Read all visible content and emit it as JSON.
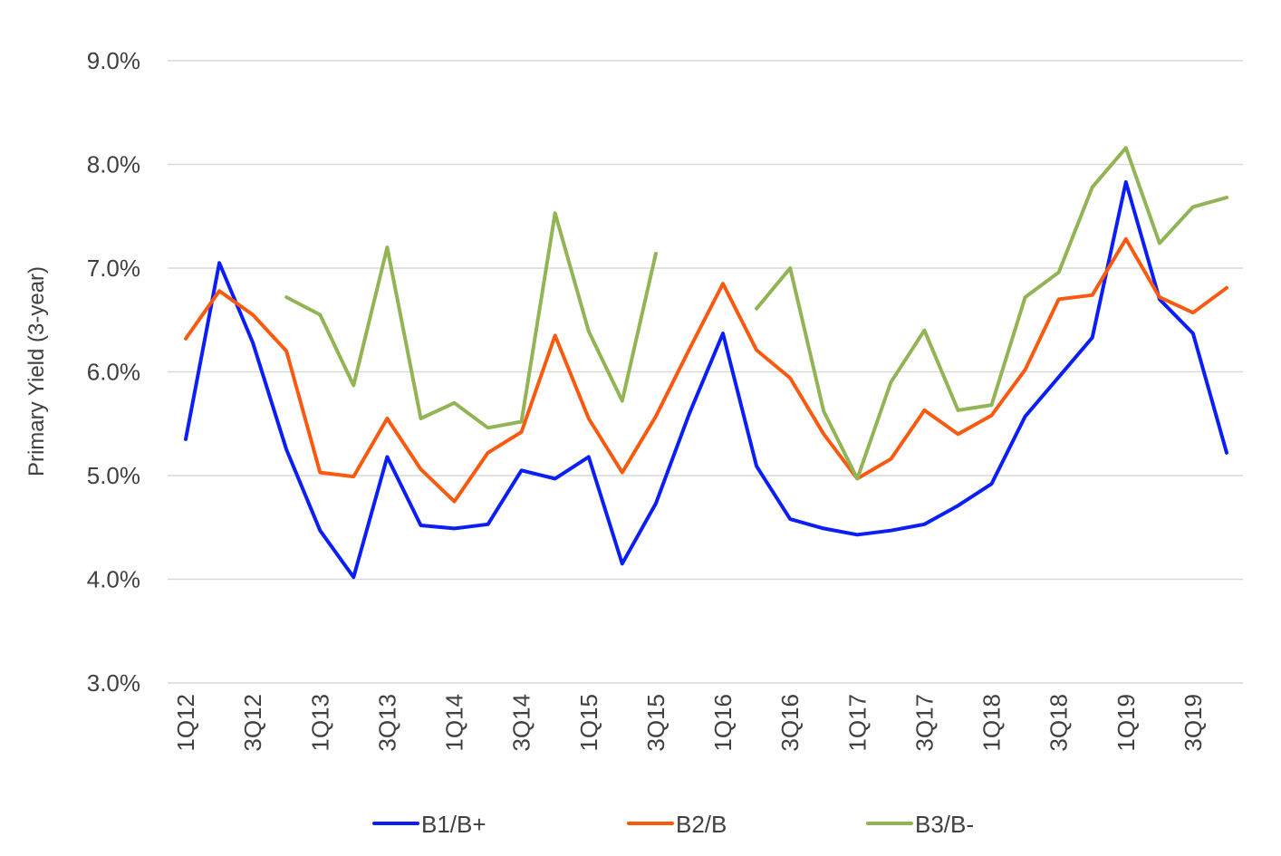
{
  "chart_data": {
    "type": "line",
    "title": "",
    "xlabel": "",
    "ylabel": "Primary Yield (3-year)",
    "ylim": [
      3.0,
      9.0
    ],
    "yticks": [
      "3.0%",
      "4.0%",
      "5.0%",
      "6.0%",
      "7.0%",
      "8.0%",
      "9.0%"
    ],
    "grid": true,
    "legend": "bottom",
    "categories": [
      "1Q12",
      "2Q12",
      "3Q12",
      "4Q12",
      "1Q13",
      "2Q13",
      "3Q13",
      "4Q13",
      "1Q14",
      "2Q14",
      "3Q14",
      "4Q14",
      "1Q15",
      "2Q15",
      "3Q15",
      "4Q15",
      "1Q16",
      "2Q16",
      "3Q16",
      "4Q16",
      "1Q17",
      "2Q17",
      "3Q17",
      "4Q17",
      "1Q18",
      "2Q18",
      "3Q18",
      "4Q18",
      "1Q19",
      "2Q19",
      "3Q19",
      "4Q19"
    ],
    "xtick_labels": [
      "1Q12",
      "3Q12",
      "1Q13",
      "3Q13",
      "1Q14",
      "3Q14",
      "1Q15",
      "3Q15",
      "1Q16",
      "3Q16",
      "1Q17",
      "3Q17",
      "1Q18",
      "3Q18",
      "1Q19",
      "3Q19"
    ],
    "series": [
      {
        "name": "B1/B+",
        "color": "#0a1ef5",
        "values": [
          5.35,
          7.05,
          6.28,
          5.25,
          4.47,
          4.02,
          5.18,
          4.52,
          4.49,
          4.53,
          5.05,
          4.97,
          5.18,
          4.15,
          4.73,
          5.6,
          6.37,
          5.09,
          4.58,
          4.49,
          4.43,
          4.47,
          4.53,
          4.71,
          4.92,
          5.57,
          5.95,
          6.33,
          7.83,
          6.7,
          6.37,
          5.22
        ]
      },
      {
        "name": "B2/B",
        "color": "#fa5a0f",
        "values": [
          6.32,
          6.78,
          6.55,
          6.2,
          5.03,
          4.99,
          5.55,
          5.06,
          4.75,
          5.22,
          5.42,
          6.35,
          5.55,
          5.03,
          5.57,
          6.22,
          6.85,
          6.21,
          5.94,
          5.4,
          4.97,
          5.16,
          5.63,
          5.4,
          5.58,
          6.02,
          6.7,
          6.74,
          7.28,
          6.72,
          6.57,
          6.81
        ]
      },
      {
        "name": "B3/B-",
        "color": "#92b455",
        "values": [
          null,
          null,
          null,
          6.72,
          6.55,
          5.87,
          7.2,
          5.55,
          5.7,
          5.46,
          5.52,
          7.53,
          6.39,
          5.72,
          7.14,
          null,
          null,
          6.61,
          7.0,
          5.62,
          4.97,
          5.9,
          6.4,
          5.63,
          5.68,
          6.72,
          6.96,
          7.78,
          8.16,
          7.24,
          7.59,
          7.68
        ]
      }
    ]
  }
}
